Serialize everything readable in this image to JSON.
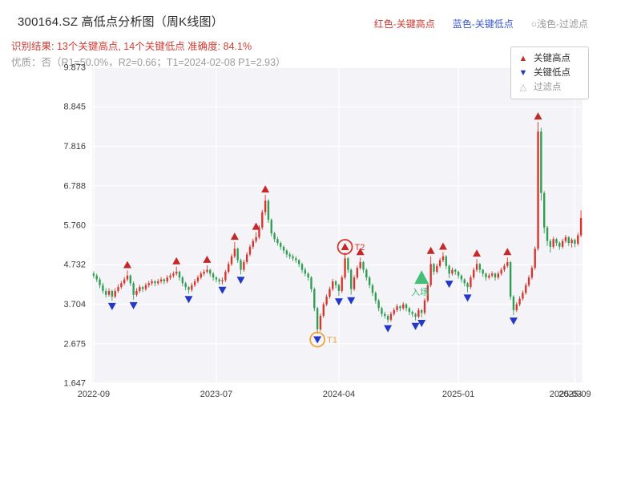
{
  "header": {
    "title": "300164.SZ 高低点分析图（周K线图）",
    "legend_inline": [
      {
        "label": "红色-关键高点",
        "color": "#cf3a32"
      },
      {
        "label": "蓝色-关键低点",
        "color": "#3b5bd6"
      },
      {
        "label": "○浅色-过滤点",
        "color": "#9a9a9a"
      }
    ],
    "result_line": "识别结果: 13个关键高点, 14个关键低点  准确度: 84.1%",
    "quality_line": "优质：否（R1=50.0%，R2=0.66；T1=2024-02-08 P1=2.93）"
  },
  "legend_box": {
    "items": [
      {
        "glyph": "▲",
        "label": "关键高点",
        "color": "#c62828"
      },
      {
        "glyph": "▼",
        "label": "关键低点",
        "color": "#1f3bb3"
      },
      {
        "glyph": "△",
        "label": "过滤点",
        "color": "#b5b5b5"
      }
    ]
  },
  "chart_data": {
    "type": "candlestick",
    "title": "300164.SZ 高低点分析图（周K线图）",
    "ylim": [
      1.647,
      9.873
    ],
    "y_ticks": [
      "9.873",
      "8.845",
      "7.816",
      "6.788",
      "5.760",
      "4.732",
      "3.704",
      "2.675",
      "1.647"
    ],
    "x_ticks": [
      {
        "label": "2022-09",
        "index": 0
      },
      {
        "label": "2023-07",
        "index": 40
      },
      {
        "label": "2024-04",
        "index": 80
      },
      {
        "label": "2025-01",
        "index": 119
      },
      {
        "label": "2025-03",
        "index": 154,
        "grid": false
      },
      {
        "label": "2025-09",
        "index": 157
      }
    ],
    "colors": {
      "up": "#d9342b",
      "down": "#2f9e52",
      "key_high": "#c62828",
      "key_low": "#2238c9",
      "filtered": "#bbbbbb",
      "entry": "#33b86c"
    },
    "candles": [
      [
        4.5,
        4.56,
        4.38,
        4.45
      ],
      [
        4.45,
        4.5,
        4.28,
        4.35
      ],
      [
        4.35,
        4.4,
        4.12,
        4.2
      ],
      [
        4.2,
        4.26,
        3.98,
        4.05
      ],
      [
        4.05,
        4.12,
        3.88,
        3.95
      ],
      [
        3.95,
        4.12,
        3.9,
        4.05
      ],
      [
        4.05,
        4.08,
        3.8,
        3.9
      ],
      [
        3.9,
        4.12,
        3.86,
        4.05
      ],
      [
        4.05,
        4.22,
        4.0,
        4.15
      ],
      [
        4.15,
        4.31,
        4.1,
        4.25
      ],
      [
        4.25,
        4.41,
        4.2,
        4.35
      ],
      [
        4.35,
        4.58,
        4.3,
        4.45
      ],
      [
        4.45,
        4.48,
        4.18,
        4.25
      ],
      [
        4.25,
        4.3,
        3.82,
        3.95
      ],
      [
        3.95,
        4.12,
        3.9,
        4.05
      ],
      [
        4.05,
        4.21,
        4.0,
        4.15
      ],
      [
        4.15,
        4.18,
        4.02,
        4.1
      ],
      [
        4.1,
        4.26,
        4.05,
        4.2
      ],
      [
        4.2,
        4.31,
        4.14,
        4.25
      ],
      [
        4.25,
        4.36,
        4.19,
        4.3
      ],
      [
        4.3,
        4.33,
        4.17,
        4.25
      ],
      [
        4.25,
        4.36,
        4.2,
        4.3
      ],
      [
        4.3,
        4.41,
        4.24,
        4.35
      ],
      [
        4.35,
        4.38,
        4.22,
        4.3
      ],
      [
        4.3,
        4.46,
        4.25,
        4.4
      ],
      [
        4.4,
        4.51,
        4.34,
        4.45
      ],
      [
        4.45,
        4.56,
        4.39,
        4.5
      ],
      [
        4.5,
        4.68,
        4.45,
        4.55
      ],
      [
        4.55,
        4.58,
        4.32,
        4.4
      ],
      [
        4.4,
        4.44,
        4.17,
        4.25
      ],
      [
        4.25,
        4.29,
        4.07,
        4.15
      ],
      [
        4.15,
        4.18,
        3.98,
        4.08
      ],
      [
        4.08,
        4.26,
        4.03,
        4.2
      ],
      [
        4.2,
        4.36,
        4.15,
        4.3
      ],
      [
        4.3,
        4.46,
        4.25,
        4.4
      ],
      [
        4.4,
        4.56,
        4.35,
        4.5
      ],
      [
        4.5,
        4.61,
        4.44,
        4.55
      ],
      [
        4.55,
        4.72,
        4.5,
        4.6
      ],
      [
        4.6,
        4.63,
        4.42,
        4.5
      ],
      [
        4.5,
        4.54,
        4.32,
        4.4
      ],
      [
        4.4,
        4.44,
        4.27,
        4.35
      ],
      [
        4.35,
        4.39,
        4.22,
        4.3
      ],
      [
        4.3,
        4.4,
        4.22,
        4.33
      ],
      [
        4.33,
        4.6,
        4.28,
        4.55
      ],
      [
        4.55,
        4.81,
        4.5,
        4.75
      ],
      [
        4.75,
        5.01,
        4.7,
        4.95
      ],
      [
        4.95,
        5.32,
        4.9,
        5.15
      ],
      [
        5.15,
        5.18,
        4.78,
        4.85
      ],
      [
        4.85,
        4.89,
        4.48,
        4.6
      ],
      [
        4.6,
        4.86,
        4.55,
        4.8
      ],
      [
        4.8,
        5.06,
        4.75,
        5.0
      ],
      [
        5.0,
        5.26,
        4.95,
        5.2
      ],
      [
        5.2,
        5.41,
        5.14,
        5.35
      ],
      [
        5.35,
        5.58,
        5.3,
        5.45
      ],
      [
        5.45,
        5.76,
        5.4,
        5.7
      ],
      [
        5.7,
        6.16,
        5.64,
        6.1
      ],
      [
        6.1,
        6.55,
        6.02,
        6.4
      ],
      [
        6.4,
        6.44,
        5.82,
        5.9
      ],
      [
        5.9,
        5.94,
        5.47,
        5.55
      ],
      [
        5.55,
        5.59,
        5.32,
        5.4
      ],
      [
        5.4,
        5.46,
        5.23,
        5.3
      ],
      [
        5.3,
        5.34,
        5.12,
        5.2
      ],
      [
        5.2,
        5.24,
        5.02,
        5.1
      ],
      [
        5.1,
        5.14,
        4.92,
        5.0
      ],
      [
        5.0,
        5.06,
        4.88,
        4.95
      ],
      [
        4.95,
        5.01,
        4.83,
        4.9
      ],
      [
        4.9,
        4.96,
        4.78,
        4.85
      ],
      [
        4.85,
        4.88,
        4.67,
        4.75
      ],
      [
        4.75,
        4.79,
        4.52,
        4.6
      ],
      [
        4.6,
        4.66,
        4.43,
        4.5
      ],
      [
        4.5,
        4.54,
        4.32,
        4.4
      ],
      [
        4.4,
        4.44,
        4.02,
        4.1
      ],
      [
        4.1,
        4.14,
        3.52,
        3.6
      ],
      [
        3.6,
        3.64,
        2.93,
        3.05
      ],
      [
        3.05,
        3.46,
        3.0,
        3.4
      ],
      [
        3.4,
        3.76,
        3.35,
        3.7
      ],
      [
        3.7,
        3.96,
        3.65,
        3.9
      ],
      [
        3.9,
        4.16,
        3.85,
        4.1
      ],
      [
        4.1,
        4.36,
        4.05,
        4.3
      ],
      [
        4.3,
        4.33,
        4.12,
        4.2
      ],
      [
        4.2,
        4.24,
        3.92,
        4.05
      ],
      [
        4.05,
        4.46,
        4.0,
        4.4
      ],
      [
        4.4,
        5.05,
        4.35,
        4.9
      ],
      [
        4.9,
        4.93,
        4.52,
        4.6
      ],
      [
        4.6,
        4.64,
        3.95,
        4.1
      ],
      [
        4.1,
        4.46,
        4.05,
        4.4
      ],
      [
        4.4,
        4.71,
        4.35,
        4.65
      ],
      [
        4.65,
        4.92,
        4.6,
        4.8
      ],
      [
        4.8,
        4.83,
        4.52,
        4.6
      ],
      [
        4.6,
        4.64,
        4.32,
        4.4
      ],
      [
        4.4,
        4.44,
        4.12,
        4.2
      ],
      [
        4.2,
        4.24,
        3.92,
        4.0
      ],
      [
        4.0,
        4.04,
        3.72,
        3.8
      ],
      [
        3.8,
        3.84,
        3.52,
        3.6
      ],
      [
        3.6,
        3.64,
        3.38,
        3.45
      ],
      [
        3.45,
        3.51,
        3.33,
        3.4
      ],
      [
        3.4,
        3.44,
        3.22,
        3.3
      ],
      [
        3.3,
        3.51,
        3.25,
        3.45
      ],
      [
        3.45,
        3.61,
        3.4,
        3.55
      ],
      [
        3.55,
        3.71,
        3.5,
        3.65
      ],
      [
        3.65,
        3.68,
        3.52,
        3.6
      ],
      [
        3.6,
        3.76,
        3.55,
        3.7
      ],
      [
        3.7,
        3.73,
        3.52,
        3.6
      ],
      [
        3.6,
        3.63,
        3.42,
        3.5
      ],
      [
        3.5,
        3.54,
        3.37,
        3.45
      ],
      [
        3.45,
        3.48,
        3.28,
        3.38
      ],
      [
        3.38,
        3.61,
        3.33,
        3.55
      ],
      [
        3.55,
        3.58,
        3.36,
        3.48
      ],
      [
        3.48,
        3.86,
        3.43,
        3.8
      ],
      [
        3.8,
        4.26,
        3.75,
        4.2
      ],
      [
        4.2,
        4.95,
        4.15,
        4.75
      ],
      [
        4.75,
        4.78,
        4.47,
        4.55
      ],
      [
        4.55,
        4.76,
        4.5,
        4.7
      ],
      [
        4.7,
        4.91,
        4.65,
        4.85
      ],
      [
        4.85,
        5.06,
        4.8,
        4.95
      ],
      [
        4.95,
        4.98,
        4.62,
        4.7
      ],
      [
        4.7,
        4.74,
        4.38,
        4.5
      ],
      [
        4.5,
        4.66,
        4.45,
        4.6
      ],
      [
        4.6,
        4.63,
        4.47,
        4.55
      ],
      [
        4.55,
        4.58,
        4.37,
        4.45
      ],
      [
        4.45,
        4.48,
        4.27,
        4.35
      ],
      [
        4.35,
        4.38,
        4.17,
        4.25
      ],
      [
        4.25,
        4.28,
        4.02,
        4.15
      ],
      [
        4.15,
        4.46,
        4.1,
        4.4
      ],
      [
        4.4,
        4.66,
        4.35,
        4.6
      ],
      [
        4.6,
        4.88,
        4.55,
        4.75
      ],
      [
        4.75,
        4.78,
        4.52,
        4.6
      ],
      [
        4.6,
        4.63,
        4.42,
        4.5
      ],
      [
        4.5,
        4.53,
        4.32,
        4.4
      ],
      [
        4.4,
        4.51,
        4.35,
        4.45
      ],
      [
        4.45,
        4.56,
        4.4,
        4.5
      ],
      [
        4.5,
        4.53,
        4.32,
        4.4
      ],
      [
        4.4,
        4.56,
        4.35,
        4.5
      ],
      [
        4.5,
        4.66,
        4.45,
        4.6
      ],
      [
        4.6,
        4.76,
        4.55,
        4.7
      ],
      [
        4.7,
        4.92,
        4.65,
        4.8
      ],
      [
        4.8,
        4.83,
        3.82,
        3.9
      ],
      [
        3.9,
        3.94,
        3.42,
        3.55
      ],
      [
        3.55,
        3.76,
        3.5,
        3.7
      ],
      [
        3.7,
        3.91,
        3.65,
        3.85
      ],
      [
        3.85,
        4.06,
        3.8,
        4.0
      ],
      [
        4.0,
        4.26,
        3.95,
        4.2
      ],
      [
        4.2,
        4.46,
        4.15,
        4.4
      ],
      [
        4.4,
        4.71,
        4.35,
        4.65
      ],
      [
        4.65,
        5.21,
        4.6,
        5.15
      ],
      [
        5.15,
        8.45,
        5.1,
        8.2
      ],
      [
        8.2,
        8.3,
        6.4,
        6.6
      ],
      [
        6.6,
        6.65,
        5.55,
        5.7
      ],
      [
        5.7,
        5.74,
        5.22,
        5.35
      ],
      [
        5.35,
        5.4,
        5.05,
        5.2
      ],
      [
        5.2,
        5.46,
        5.15,
        5.4
      ],
      [
        5.4,
        5.43,
        5.22,
        5.3
      ],
      [
        5.3,
        5.34,
        5.12,
        5.2
      ],
      [
        5.2,
        5.41,
        5.15,
        5.35
      ],
      [
        5.35,
        5.51,
        5.3,
        5.45
      ],
      [
        5.45,
        5.48,
        5.22,
        5.3
      ],
      [
        5.3,
        5.43,
        5.18,
        5.38
      ],
      [
        5.38,
        5.41,
        5.19,
        5.28
      ],
      [
        5.28,
        5.56,
        5.23,
        5.5
      ],
      [
        5.5,
        6.15,
        5.45,
        5.95
      ]
    ],
    "key_high_idx": [
      11,
      27,
      37,
      46,
      53,
      56,
      82,
      87,
      110,
      114,
      125,
      135,
      145
    ],
    "key_low_idx": [
      6,
      13,
      31,
      42,
      48,
      73,
      80,
      84,
      96,
      105,
      107,
      116,
      122,
      137
    ],
    "annotations": [
      {
        "idx": 73,
        "label": "T1",
        "color": "#f2a33c",
        "type": "ring-low",
        "price": 2.93
      },
      {
        "idx": 82,
        "label": "T2",
        "color": "#d9342b",
        "type": "ring-high",
        "price": 5.05
      },
      {
        "idx": 107,
        "label": "入场",
        "color": "#33b86c",
        "type": "entry",
        "price": 4.4
      }
    ]
  }
}
